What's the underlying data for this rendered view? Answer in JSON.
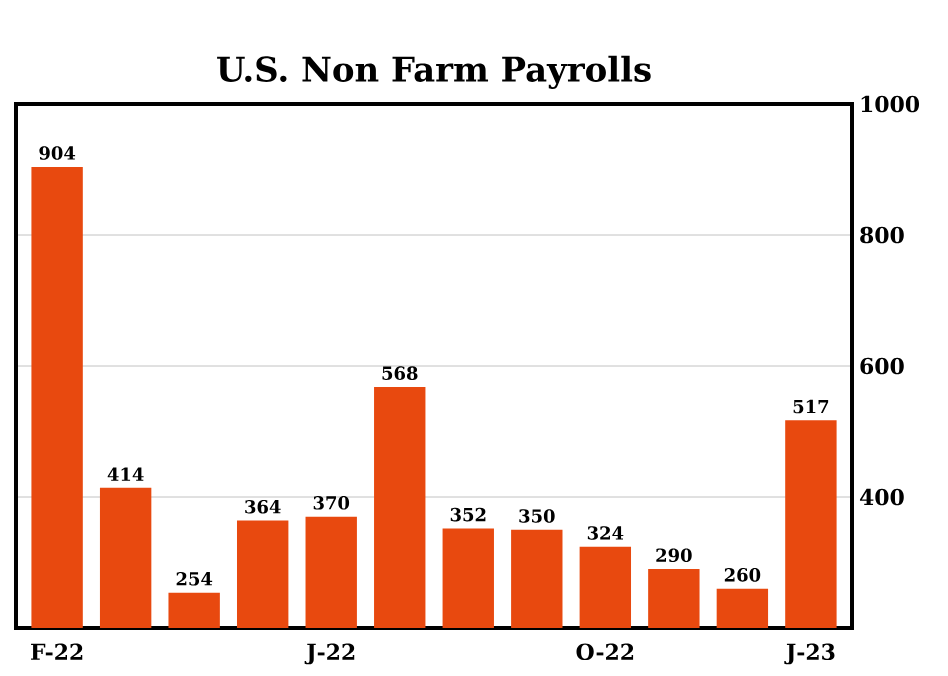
{
  "chart_data": {
    "type": "bar",
    "title": "U.S. Non Farm Payrolls",
    "categories": [
      "F-22",
      null,
      null,
      null,
      "J-22",
      null,
      null,
      null,
      "O-22",
      null,
      null,
      "J-23"
    ],
    "values": [
      904,
      414,
      254,
      364,
      370,
      568,
      352,
      350,
      324,
      290,
      260,
      517
    ],
    "color": "#e8490f",
    "ylim": [
      200,
      1000
    ],
    "yticks": [
      400,
      600,
      800,
      1000
    ],
    "grid": "y",
    "data_labels": true
  }
}
